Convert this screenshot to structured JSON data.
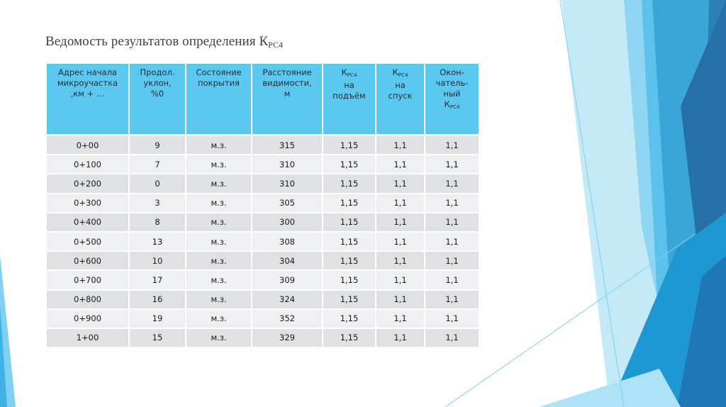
{
  "slide": {
    "title_main": "Ведомость результатов определения К",
    "title_sub": "РС4"
  },
  "table": {
    "headers": [
      [
        "Адрес начала",
        "микроучастка",
        ",км + …"
      ],
      [
        "Продол.",
        "уклон,",
        "%0"
      ],
      [
        "Состояние",
        "покрытия"
      ],
      [
        "Расстояние",
        "видимости,",
        "м"
      ],
      [
        "К_РС4",
        "на",
        "подъём"
      ],
      [
        "К_РС4",
        "на",
        "спуск"
      ],
      [
        "Окон-",
        "чатель-",
        "ный",
        "К_РС4"
      ]
    ],
    "k_symbol": "К",
    "k_sub": "РС4",
    "rows": [
      [
        "0+00",
        "9",
        "м.з.",
        "315",
        "1,15",
        "1,1",
        "1,1"
      ],
      [
        "0+100",
        "7",
        "м.з.",
        "310",
        "1,15",
        "1,1",
        "1,1"
      ],
      [
        "0+200",
        "0",
        "м.з.",
        "310",
        "1,15",
        "1,1",
        "1,1"
      ],
      [
        "0+300",
        "3",
        "м.з.",
        "305",
        "1,15",
        "1,1",
        "1,1"
      ],
      [
        "0+400",
        "8",
        "м.з.",
        "300",
        "1,15",
        "1,1",
        "1,1"
      ],
      [
        "0+500",
        "13",
        "м.з.",
        "308",
        "1,15",
        "1,1",
        "1,1"
      ],
      [
        "0+600",
        "10",
        "м.з.",
        "304",
        "1,15",
        "1,1",
        "1,1"
      ],
      [
        "0+700",
        "17",
        "м.з.",
        "309",
        "1,15",
        "1,1",
        "1,1"
      ],
      [
        "0+800",
        "16",
        "м.з.",
        "324",
        "1,15",
        "1,1",
        "1,1"
      ],
      [
        "0+900",
        "19",
        "м.з.",
        "352",
        "1,15",
        "1,1",
        "1,1"
      ],
      [
        "1+00",
        "15",
        "м.з.",
        "329",
        "1,15",
        "1,1",
        "1,1"
      ]
    ]
  },
  "colors": {
    "header_fill": "#5bc8ef",
    "row_dark": "#dfe1e3",
    "row_light": "#eff0f1",
    "accent_blue": "#2e9fd8",
    "deep_blue": "#1f6f9f",
    "light_blue": "#9fdcf5"
  }
}
